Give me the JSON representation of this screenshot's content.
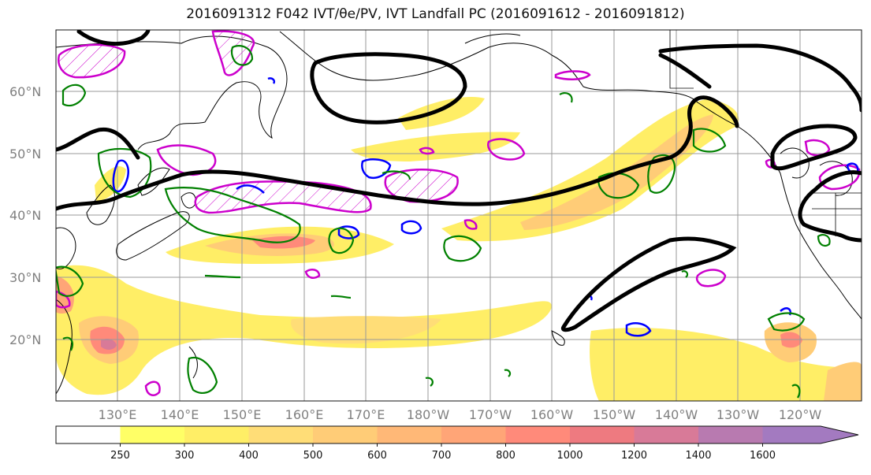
{
  "title": "2016091312 F042 IVT/θe/PV, IVT Landfall PC (2016091612 - 2016091812)",
  "lat_labels": [
    "60°N",
    "50°N",
    "40°N",
    "30°N",
    "20°N"
  ],
  "lon_labels": [
    "130°E",
    "140°E",
    "150°E",
    "160°E",
    "170°E",
    "180°W",
    "170°W",
    "160°W",
    "150°W",
    "140°W",
    "130°W",
    "120°W"
  ],
  "colorbar": {
    "levels": [
      "250",
      "300",
      "400",
      "500",
      "600",
      "700",
      "800",
      "1000",
      "1200",
      "1400",
      "1600"
    ],
    "colors": [
      "#ffffff",
      "#ffff66",
      "#ffee66",
      "#ffdd77",
      "#ffcc77",
      "#ffb877",
      "#ffa577",
      "#ff8a7a",
      "#ee7a80",
      "#d87a98",
      "#b87ab0",
      "#a37ac0"
    ]
  },
  "colors": {
    "ivt_pc_contour": "#000000",
    "pv_positive": "#cc00cc",
    "pv_negative": "#0000ff",
    "theta_e": "#008000",
    "coastline": "#000000",
    "grid": "#999999"
  }
}
